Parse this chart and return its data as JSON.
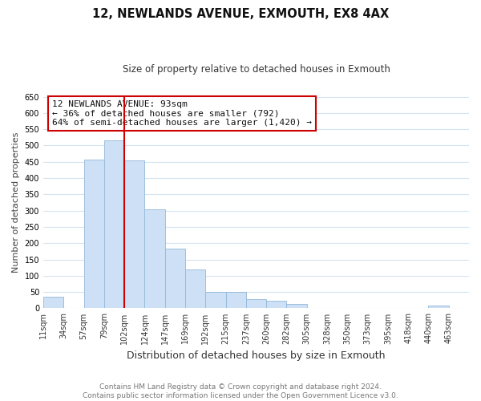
{
  "title": "12, NEWLANDS AVENUE, EXMOUTH, EX8 4AX",
  "subtitle": "Size of property relative to detached houses in Exmouth",
  "xlabel": "Distribution of detached houses by size in Exmouth",
  "ylabel": "Number of detached properties",
  "footnote1": "Contains HM Land Registry data © Crown copyright and database right 2024.",
  "footnote2": "Contains public sector information licensed under the Open Government Licence v3.0.",
  "bin_labels": [
    "11sqm",
    "34sqm",
    "57sqm",
    "79sqm",
    "102sqm",
    "124sqm",
    "147sqm",
    "169sqm",
    "192sqm",
    "215sqm",
    "237sqm",
    "260sqm",
    "282sqm",
    "305sqm",
    "328sqm",
    "350sqm",
    "373sqm",
    "395sqm",
    "418sqm",
    "440sqm",
    "463sqm"
  ],
  "bar_heights": [
    35,
    0,
    458,
    515,
    455,
    305,
    183,
    120,
    50,
    50,
    28,
    22,
    13,
    0,
    0,
    0,
    0,
    0,
    0,
    8,
    0
  ],
  "bar_color": "#cde0f5",
  "bar_edgecolor": "#92b8d8",
  "vline_bar_index": 4,
  "vline_color": "#cc0000",
  "ylim": [
    0,
    650
  ],
  "yticks": [
    0,
    50,
    100,
    150,
    200,
    250,
    300,
    350,
    400,
    450,
    500,
    550,
    600,
    650
  ],
  "annotation_line1": "12 NEWLANDS AVENUE: 93sqm",
  "annotation_line2": "← 36% of detached houses are smaller (792)",
  "annotation_line3": "64% of semi-detached houses are larger (1,420) →",
  "annotation_box_color": "#cc0000",
  "grid_color": "#d5e3f0",
  "title_fontsize": 10.5,
  "subtitle_fontsize": 8.5,
  "ylabel_fontsize": 8,
  "xlabel_fontsize": 9,
  "tick_fontsize": 7,
  "annotation_fontsize": 8,
  "footnote_fontsize": 6.5
}
